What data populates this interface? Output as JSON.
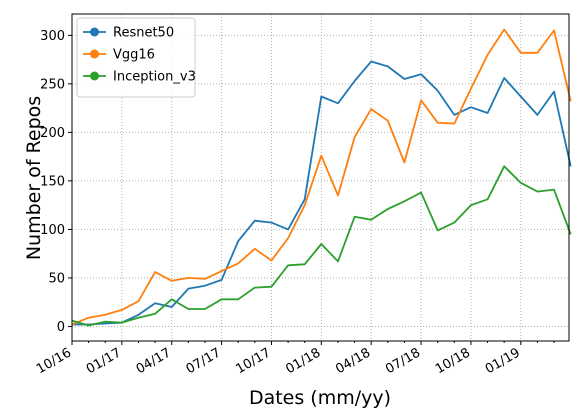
{
  "chart_data": {
    "type": "line",
    "title": "",
    "xlabel": "Dates (mm/yy)",
    "ylabel": "Number of Repos",
    "x_tick_labels": [
      "10/16",
      "01/17",
      "04/17",
      "07/17",
      "10/17",
      "01/18",
      "04/18",
      "07/18",
      "10/18",
      "01/19"
    ],
    "y_ticks": [
      0,
      50,
      100,
      150,
      200,
      250,
      300
    ],
    "ylim": [
      -15,
      322
    ],
    "xlim_month_index": [
      0,
      29.9
    ],
    "grid": true,
    "legend_position": "top-left",
    "x": [
      "10/16",
      "11/16",
      "12/16",
      "01/17",
      "02/17",
      "03/17",
      "04/17",
      "05/17",
      "06/17",
      "07/17",
      "08/17",
      "09/17",
      "10/17",
      "11/17",
      "12/17",
      "01/18",
      "02/18",
      "03/18",
      "04/18",
      "05/18",
      "06/18",
      "07/18",
      "08/18",
      "09/18",
      "10/18",
      "11/18",
      "12/18",
      "01/19",
      "02/19",
      "03/19",
      "04/19"
    ],
    "series": [
      {
        "name": "Resnet50",
        "color": "#1f77b4",
        "values": [
          2,
          2,
          3,
          4,
          12,
          24,
          20,
          39,
          42,
          48,
          88,
          109,
          107,
          100,
          131,
          237,
          230,
          253,
          273,
          268,
          255,
          260,
          243,
          218,
          226,
          220,
          256,
          237,
          218,
          242,
          165
        ]
      },
      {
        "name": "Vgg16",
        "color": "#ff7f0e",
        "values": [
          2,
          9,
          12,
          17,
          26,
          56,
          47,
          50,
          49,
          57,
          65,
          80,
          68,
          91,
          125,
          176,
          135,
          195,
          224,
          212,
          169,
          233,
          210,
          209,
          245,
          280,
          306,
          282,
          282,
          305,
          232
        ]
      },
      {
        "name": "Inception_v3",
        "color": "#2ca02c",
        "values": [
          6,
          1,
          5,
          4,
          9,
          13,
          28,
          18,
          18,
          28,
          28,
          40,
          41,
          63,
          64,
          85,
          67,
          113,
          110,
          121,
          129,
          138,
          99,
          107,
          125,
          131,
          165,
          148,
          139,
          141,
          95
        ]
      }
    ]
  }
}
